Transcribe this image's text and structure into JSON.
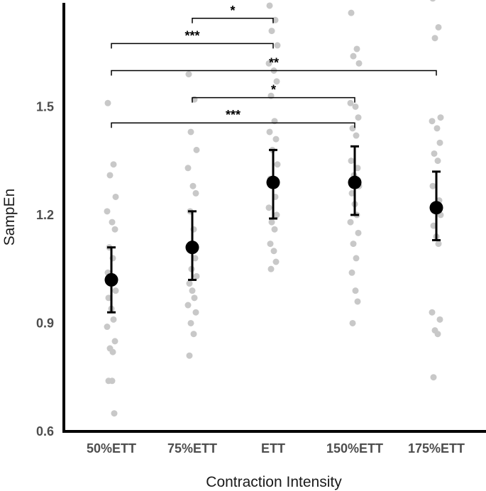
{
  "chart_data": {
    "type": "scatter",
    "xlabel": "Contraction Intensity",
    "ylabel": "SampEn",
    "categories": [
      "50%ETT",
      "75%ETT",
      "ETT",
      "150%ETT",
      "175%ETT"
    ],
    "ylim": [
      0.6,
      1.8
    ],
    "yticks": [
      0.6,
      0.9,
      1.2,
      1.5
    ],
    "ytick_labels": [
      "0.6",
      "0.9",
      "1.2",
      "1.5"
    ],
    "grid": false,
    "summary": [
      {
        "category": "50%ETT",
        "mean": 1.02,
        "lower": 0.93,
        "upper": 1.11
      },
      {
        "category": "75%ETT",
        "mean": 1.11,
        "lower": 1.02,
        "upper": 1.21
      },
      {
        "category": "ETT",
        "mean": 1.29,
        "lower": 1.19,
        "upper": 1.38
      },
      {
        "category": "150%ETT",
        "mean": 1.29,
        "lower": 1.2,
        "upper": 1.39
      },
      {
        "category": "175%ETT",
        "mean": 1.22,
        "lower": 1.13,
        "upper": 1.32
      }
    ],
    "raw_points": [
      {
        "category": "50%ETT",
        "values": [
          1.51,
          1.34,
          1.31,
          1.25,
          1.21,
          1.18,
          1.16,
          1.11,
          1.08,
          1.04,
          1.02,
          1.01,
          0.99,
          0.97,
          0.94,
          0.91,
          0.89,
          0.85,
          0.83,
          0.82,
          0.74,
          0.74,
          0.65
        ]
      },
      {
        "category": "75%ETT",
        "values": [
          1.59,
          1.52,
          1.43,
          1.38,
          1.33,
          1.28,
          1.26,
          1.21,
          1.16,
          1.11,
          1.08,
          1.05,
          1.03,
          1.01,
          0.99,
          0.97,
          0.95,
          0.93,
          0.9,
          0.87,
          0.81
        ]
      },
      {
        "category": "ETT",
        "values": [
          1.78,
          1.74,
          1.71,
          1.67,
          1.62,
          1.6,
          1.57,
          1.53,
          1.46,
          1.43,
          1.41,
          1.38,
          1.34,
          1.3,
          1.28,
          1.25,
          1.22,
          1.2,
          1.18,
          1.16,
          1.12,
          1.1,
          1.07,
          1.05
        ]
      },
      {
        "category": "150%ETT",
        "values": [
          1.76,
          1.66,
          1.64,
          1.62,
          1.51,
          1.5,
          1.47,
          1.44,
          1.42,
          1.35,
          1.33,
          1.31,
          1.28,
          1.26,
          1.23,
          1.2,
          1.18,
          1.15,
          1.12,
          1.08,
          1.04,
          0.99,
          0.96,
          0.9
        ]
      },
      {
        "category": "175%ETT",
        "values": [
          1.8,
          1.72,
          1.69,
          1.47,
          1.46,
          1.44,
          1.4,
          1.37,
          1.35,
          1.28,
          1.24,
          1.22,
          1.2,
          1.17,
          1.14,
          1.12,
          0.93,
          0.91,
          0.88,
          0.87,
          0.75
        ]
      }
    ],
    "comparisons": [
      {
        "from": "75%ETT",
        "to": "ETT",
        "label": "*",
        "y": 1.745
      },
      {
        "from": "50%ETT",
        "to": "ETT",
        "label": "***",
        "y": 1.675
      },
      {
        "from": "50%ETT",
        "to": "175%ETT",
        "label": "**",
        "y": 1.6
      },
      {
        "from": "75%ETT",
        "to": "150%ETT",
        "label": "*",
        "y": 1.525
      },
      {
        "from": "50%ETT",
        "to": "150%ETT",
        "label": "***",
        "y": 1.455
      }
    ],
    "colors": {
      "raw_points": "#c8c8c8",
      "summary": "#000000",
      "axis": "#000000"
    }
  }
}
